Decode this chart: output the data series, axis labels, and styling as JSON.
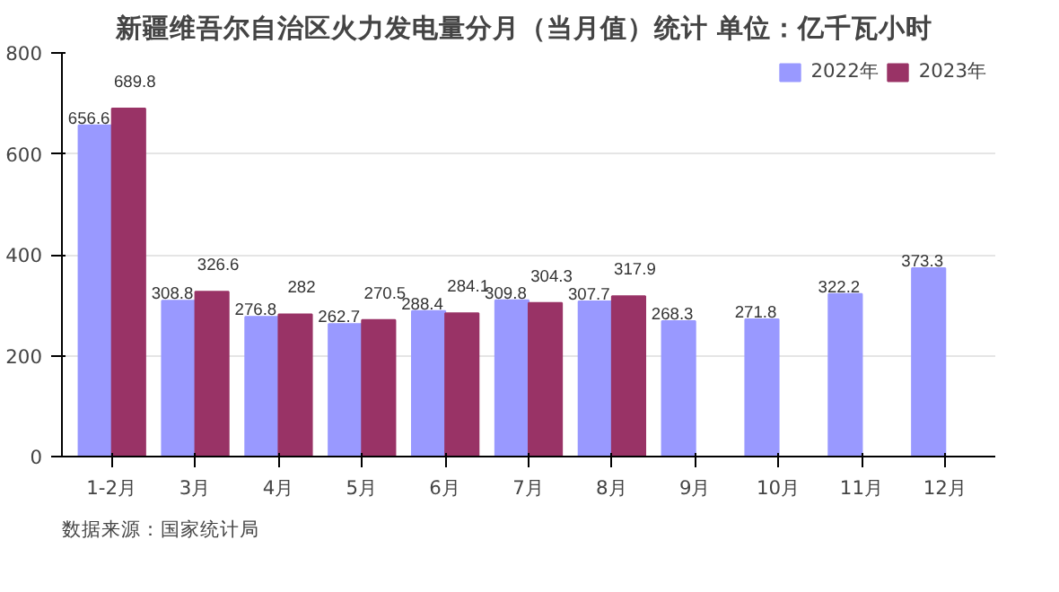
{
  "chart_data": {
    "type": "bar",
    "title": "新疆维吾尔自治区火力发电量分月（当月值）统计  单位：亿千瓦小时",
    "categories": [
      "1-2月",
      "3月",
      "4月",
      "5月",
      "6月",
      "7月",
      "8月",
      "9月",
      "10月",
      "11月",
      "12月"
    ],
    "series": [
      {
        "name": "2022年",
        "color": "#9999ff",
        "values": [
          656.6,
          308.8,
          276.8,
          262.7,
          288.4,
          309.8,
          307.7,
          268.3,
          271.8,
          322.2,
          373.3
        ]
      },
      {
        "name": "2023年",
        "color": "#993366",
        "values": [
          689.8,
          326.6,
          282,
          270.5,
          284.1,
          304.3,
          317.9,
          null,
          null,
          null,
          null
        ]
      }
    ],
    "ylim": [
      0,
      800
    ],
    "yticks": [
      0,
      200,
      400,
      600,
      800
    ],
    "grid": "y",
    "legend": "top right",
    "data_labels": true,
    "annotations": [
      "数据来源：国家统计局"
    ]
  }
}
